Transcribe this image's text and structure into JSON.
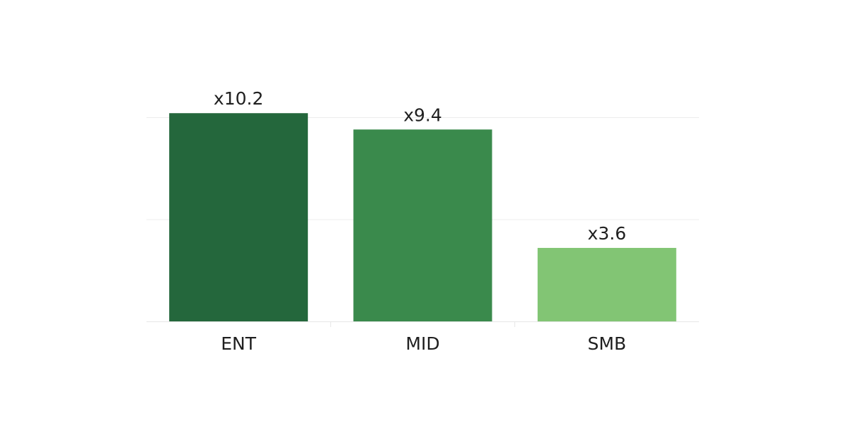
{
  "chart_data": {
    "type": "bar",
    "categories": [
      "ENT",
      "MID",
      "SMB"
    ],
    "values": [
      10.2,
      9.4,
      3.6
    ],
    "value_labels": [
      "x10.2",
      "x9.4",
      "x3.6"
    ],
    "colors": [
      "#24673c",
      "#3a8a4c",
      "#82c574"
    ],
    "ylim": [
      0,
      10.5
    ],
    "gridlines_at": [
      5,
      10
    ],
    "grid": true,
    "legend": "none",
    "title": "",
    "xlabel": "",
    "ylabel": ""
  }
}
